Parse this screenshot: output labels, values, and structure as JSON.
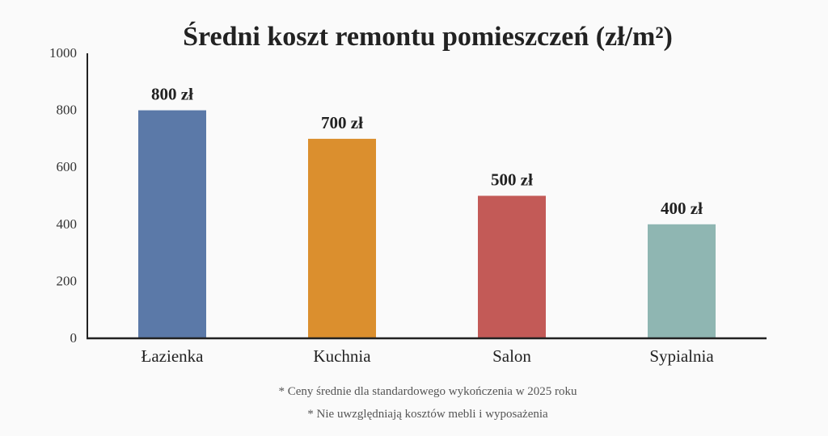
{
  "chart_data": {
    "type": "bar",
    "title": "Średni koszt remontu pomieszczeń (zł/m²)",
    "xlabel": "",
    "ylabel": "",
    "categories": [
      "Łazienka",
      "Kuchnia",
      "Salon",
      "Sypialnia"
    ],
    "values": [
      800,
      700,
      500,
      400
    ],
    "data_labels": [
      "800 zł",
      "700 zł",
      "500 zł",
      "400 zł"
    ],
    "colors": [
      "#5b79a8",
      "#db8f2e",
      "#c35a57",
      "#8fb6b2"
    ],
    "ylim": [
      0,
      1000
    ],
    "yticks": [
      0,
      200,
      400,
      600,
      800,
      1000
    ],
    "grid": false,
    "legend": "none",
    "notes": [
      "* Ceny średnie dla standardowego wykończenia w 2025 roku",
      "* Nie uwzględniają kosztów mebli i wyposażenia"
    ]
  }
}
